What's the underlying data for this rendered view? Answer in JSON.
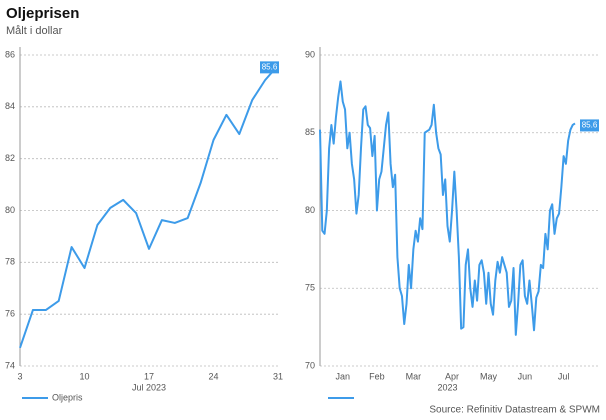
{
  "title": "Oljeprisen",
  "subtitle": "Målt i dollar",
  "source": "Source: Refinitiv Datastream & SPWM",
  "chart_data": [
    {
      "type": "line",
      "xlabel": "Jul 2023",
      "categories": [
        "3",
        null,
        null,
        null,
        null,
        "10",
        null,
        null,
        null,
        null,
        "17",
        null,
        null,
        null,
        null,
        "24",
        null,
        null,
        null,
        null,
        "31"
      ],
      "series": [
        {
          "name": "Oljepris",
          "color": "#3d9be9",
          "values": [
            74.7,
            76.16,
            76.16,
            76.51,
            78.59,
            77.78,
            79.44,
            80.1,
            80.41,
            79.9,
            78.52,
            79.63,
            79.52,
            79.71,
            81.06,
            82.72,
            83.69,
            82.95,
            84.26,
            85.03,
            85.6
          ]
        }
      ],
      "ylim": [
        74,
        86
      ],
      "yticks": [
        74,
        76,
        78,
        80,
        82,
        84,
        86
      ],
      "grid": true
    },
    {
      "type": "line",
      "xlabel": "2023",
      "categories": [
        null,
        null,
        null,
        null,
        null,
        null,
        null,
        null,
        null,
        null,
        "Jan",
        null,
        null,
        null,
        null,
        null,
        null,
        null,
        null,
        null,
        null,
        null,
        null,
        null,
        null,
        "Feb",
        null,
        null,
        null,
        null,
        null,
        null,
        null,
        null,
        null,
        null,
        null,
        null,
        null,
        null,
        null,
        "Mar",
        null,
        null,
        null,
        null,
        null,
        null,
        null,
        null,
        null,
        null,
        null,
        null,
        null,
        null,
        null,
        null,
        "Apr",
        null,
        null,
        null,
        null,
        null,
        null,
        null,
        null,
        null,
        null,
        null,
        null,
        null,
        null,
        null,
        "May",
        null,
        null,
        null,
        null,
        null,
        null,
        null,
        null,
        null,
        null,
        null,
        null,
        null,
        null,
        null,
        "Jun",
        null,
        null,
        null,
        null,
        null,
        null,
        null,
        null,
        null,
        null,
        null,
        null,
        null,
        null,
        null,
        null,
        "Jul",
        null,
        null,
        null,
        null,
        null
      ],
      "series": [
        {
          "color": "#3d9be9",
          "values": [
            85.2,
            78.7,
            78.5,
            80,
            84,
            85.5,
            84.3,
            86,
            87.3,
            88.3,
            87,
            86.5,
            84,
            85,
            83,
            82,
            79.8,
            81,
            84,
            86.5,
            86.7,
            85.5,
            85.3,
            83.5,
            84.8,
            80,
            82,
            82.5,
            84,
            85.5,
            86.3,
            83,
            81.5,
            82.3,
            77,
            75,
            74.5,
            72.7,
            74,
            76.5,
            75,
            77.5,
            78.7,
            78,
            79.5,
            78.8,
            85,
            85.1,
            85.2,
            85.5,
            86.8,
            85,
            84,
            83.6,
            81,
            82,
            79,
            78,
            80,
            82.5,
            80,
            77,
            72.4,
            72.5,
            76.5,
            77.5,
            75,
            73.8,
            75.5,
            74.2,
            76.5,
            76.8,
            76,
            74,
            76,
            74,
            73.3,
            75.5,
            76.7,
            76,
            77,
            76.5,
            76,
            73.8,
            74.2,
            76.3,
            72,
            74,
            76.5,
            76.8,
            74.5,
            74,
            75.5,
            74,
            72.3,
            74.4,
            74.8,
            76.5,
            76.3,
            78.5,
            77.5,
            80,
            80.4,
            78.5,
            79.5,
            79.8,
            81.5,
            83.5,
            83,
            84.5,
            85.2,
            85.5,
            85.6
          ]
        }
      ],
      "ylim": [
        70,
        90
      ],
      "yticks": [
        70,
        75,
        80,
        85,
        90
      ],
      "grid": true
    }
  ]
}
